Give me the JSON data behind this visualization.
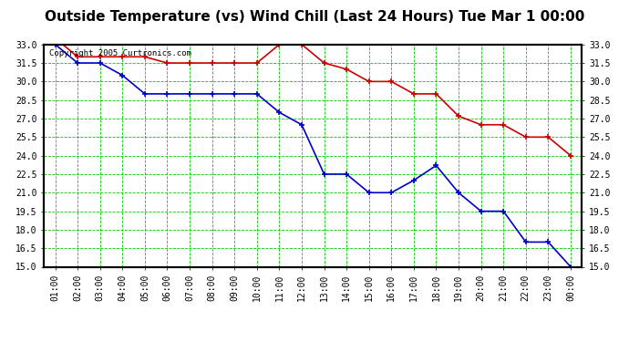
{
  "title": "Outside Temperature (vs) Wind Chill (Last 24 Hours) Tue Mar 1 00:00",
  "copyright": "Copyright 2005 Curtronics.com",
  "x_labels": [
    "01:00",
    "02:00",
    "03:00",
    "04:00",
    "05:00",
    "06:00",
    "07:00",
    "08:00",
    "09:00",
    "10:00",
    "11:00",
    "12:00",
    "13:00",
    "14:00",
    "15:00",
    "16:00",
    "17:00",
    "18:00",
    "19:00",
    "20:00",
    "21:00",
    "22:00",
    "23:00",
    "00:00"
  ],
  "temp_data": [
    33.5,
    32.0,
    32.0,
    32.0,
    32.0,
    31.5,
    31.5,
    31.5,
    31.5,
    31.5,
    33.0,
    33.0,
    31.5,
    31.0,
    30.0,
    30.0,
    29.0,
    29.0,
    27.2,
    26.5,
    26.5,
    25.5,
    25.5,
    24.0
  ],
  "wind_chill_data": [
    33.0,
    31.5,
    31.5,
    30.5,
    29.0,
    29.0,
    29.0,
    29.0,
    29.0,
    29.0,
    27.5,
    26.5,
    22.5,
    22.5,
    21.0,
    21.0,
    22.0,
    23.2,
    21.0,
    19.5,
    19.5,
    17.0,
    17.0,
    15.0
  ],
  "temp_color": "#cc0000",
  "wind_chill_color": "#0000cc",
  "grid_color": "#00cc00",
  "bg_color": "#ffffff",
  "plot_bg_color": "#ffffff",
  "ylim": [
    15.0,
    33.0
  ],
  "yticks": [
    15.0,
    16.5,
    18.0,
    19.5,
    21.0,
    22.5,
    24.0,
    25.5,
    27.0,
    28.5,
    30.0,
    31.5,
    33.0
  ],
  "title_fontsize": 11,
  "tick_fontsize": 7,
  "marker": "s",
  "marker_size": 3,
  "line_width": 1.2
}
